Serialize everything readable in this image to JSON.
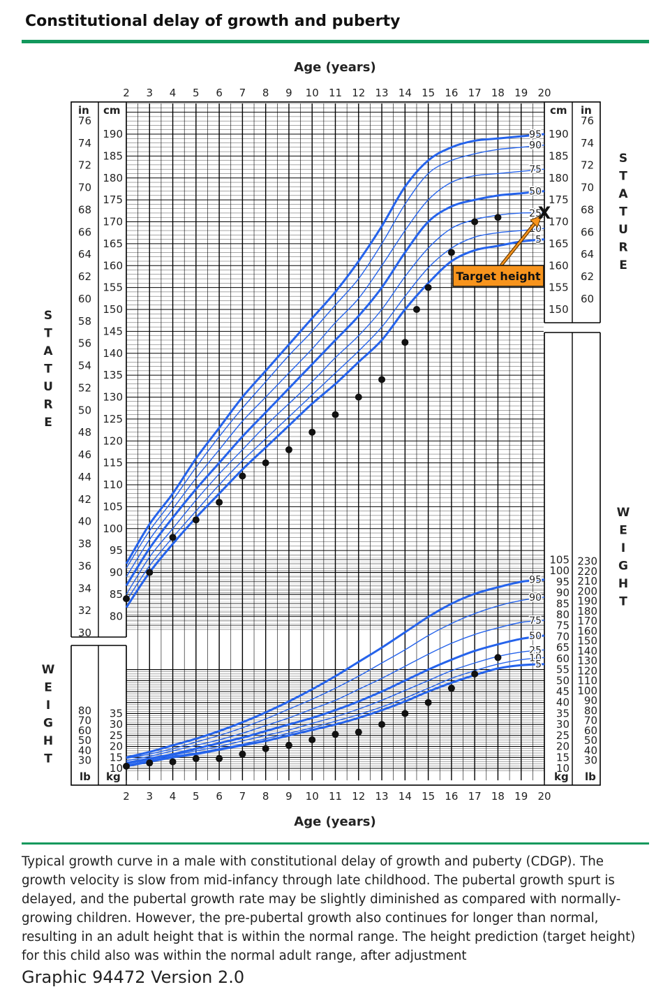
{
  "title": "Constitutional delay of growth and puberty",
  "caption": "Typical growth curve in a male with constitutional delay of growth and puberty (CDGP). The growth velocity is slow from mid-infancy through late childhood. The pubertal growth spurt is delayed, and the pubertal growth rate may be slightly diminished as compared with normally-growing children. However, the pre-pubertal growth also continues for longer than normal, resulting in an adult height that is within the normal range. The height prediction (target height) for this child also was within the normal adult range, after adjustment",
  "footer": "Graphic 94472 Version 2.0",
  "colors": {
    "accent": "#12985c",
    "curve": "#2563eb",
    "annotation": "#f7941d",
    "point": "#111111"
  },
  "chart_data": {
    "type": "line",
    "xlabel": "Age (years)",
    "x_ticks": [
      2,
      3,
      4,
      5,
      6,
      7,
      8,
      9,
      10,
      11,
      12,
      13,
      14,
      15,
      16,
      17,
      18,
      19,
      20
    ],
    "xlim": [
      2,
      20
    ],
    "percentile_labels": [
      "95",
      "90",
      "75",
      "50",
      "25",
      "10",
      "5"
    ],
    "stature": {
      "label": "STATURE",
      "ylim_cm": [
        77,
        197
      ],
      "cm_ticks_left": [
        80,
        85,
        90,
        95,
        100,
        105,
        110,
        115,
        120,
        125,
        130,
        135,
        140,
        145,
        150,
        155,
        160,
        165,
        170,
        175,
        180,
        185,
        190
      ],
      "cm_ticks_right": [
        150,
        155,
        160,
        165,
        170,
        175,
        180,
        185,
        190
      ],
      "in_ticks_left": [
        30,
        32,
        34,
        36,
        38,
        40,
        42,
        44,
        46,
        48,
        50,
        52,
        54,
        56,
        58,
        60,
        62,
        64,
        66,
        68,
        70,
        72,
        74,
        76
      ],
      "in_ticks_right": [
        60,
        62,
        64,
        66,
        68,
        70,
        72,
        74,
        76
      ],
      "unit_cm": "cm",
      "unit_in": "in",
      "ages": [
        2,
        3,
        4,
        5,
        6,
        7,
        8,
        9,
        10,
        11,
        12,
        13,
        14,
        15,
        16,
        17,
        18,
        19,
        20
      ],
      "series": [
        {
          "name": "95",
          "values": [
            92,
            101,
            108,
            116,
            123,
            130,
            136,
            142,
            148,
            154,
            161,
            169,
            178,
            184,
            187,
            188.5,
            189,
            189.5,
            190
          ]
        },
        {
          "name": "90",
          "values": [
            91,
            99.5,
            106.5,
            114,
            121,
            127.5,
            133.5,
            139.5,
            145,
            151,
            157,
            165,
            174,
            181,
            184,
            185.5,
            186.5,
            187,
            187.5
          ]
        },
        {
          "name": "75",
          "values": [
            89,
            97.5,
            104.5,
            111.5,
            118,
            124.5,
            130,
            135.5,
            141,
            147,
            152.5,
            160,
            168,
            175,
            179,
            180.5,
            181,
            181.5,
            182
          ]
        },
        {
          "name": "50",
          "values": [
            87,
            95.5,
            102.5,
            109,
            115,
            121,
            126.5,
            132,
            137.5,
            143,
            148.5,
            155,
            163,
            170,
            173.5,
            175,
            176,
            176.5,
            177
          ]
        },
        {
          "name": "25",
          "values": [
            85,
            93.5,
            100,
            106.5,
            112.5,
            118,
            123.5,
            128.5,
            133.5,
            139,
            144,
            150,
            157.5,
            164,
            168.5,
            170.5,
            171.5,
            172,
            172
          ]
        },
        {
          "name": "10",
          "values": [
            83.5,
            91.5,
            98,
            104,
            110,
            115.5,
            120.5,
            125.5,
            130.5,
            135.5,
            140.5,
            146,
            153,
            159.5,
            164,
            166.5,
            167.5,
            168,
            168.5
          ]
        },
        {
          "name": "5",
          "values": [
            82,
            90,
            96.5,
            102.5,
            108,
            113.5,
            118.5,
            123.5,
            128.5,
            133,
            138,
            143,
            150,
            156,
            161,
            163.5,
            164.5,
            165.5,
            166
          ]
        }
      ],
      "patient": {
        "x": [
          2,
          3,
          4,
          5,
          6,
          7,
          8,
          9,
          10,
          11,
          12,
          13,
          14,
          14.5,
          15,
          16,
          17,
          18
        ],
        "y": [
          84,
          90,
          98,
          102,
          106,
          112,
          115,
          118,
          122,
          126,
          130,
          134,
          142.5,
          150,
          155,
          163,
          170,
          171
        ]
      },
      "target_height": {
        "label": "Target height",
        "age": 20,
        "cm": 172
      }
    },
    "weight": {
      "label": "WEIGHT",
      "ylim_kg": [
        9,
        107
      ],
      "kg_ticks_left": [
        10,
        15,
        20,
        25,
        30,
        35
      ],
      "kg_ticks_right": [
        10,
        15,
        20,
        25,
        30,
        35,
        40,
        45,
        50,
        55,
        60,
        65,
        70,
        75,
        80,
        85,
        90,
        95,
        100,
        105
      ],
      "lb_ticks_left": [
        30,
        40,
        50,
        60,
        70,
        80
      ],
      "lb_ticks_right": [
        30,
        40,
        50,
        60,
        70,
        80,
        90,
        100,
        110,
        120,
        130,
        140,
        150,
        160,
        170,
        180,
        190,
        200,
        210,
        220,
        230
      ],
      "unit_kg": "kg",
      "unit_lb": "lb",
      "ages": [
        2,
        3,
        4,
        5,
        6,
        7,
        8,
        9,
        10,
        11,
        12,
        13,
        14,
        15,
        16,
        17,
        18,
        19,
        20
      ],
      "series": [
        {
          "name": "95",
          "values": [
            15,
            17.5,
            20.5,
            23.5,
            27,
            31,
            35.5,
            40.5,
            46,
            52,
            58.5,
            65,
            72,
            79,
            85,
            89.5,
            92.5,
            95,
            96
          ]
        },
        {
          "name": "90",
          "values": [
            14.5,
            16.5,
            19,
            22,
            25,
            28.5,
            32.5,
            37,
            41.5,
            46.5,
            52,
            58,
            64,
            70.5,
            76,
            80.5,
            84,
            86.5,
            88
          ]
        },
        {
          "name": "75",
          "values": [
            13.5,
            15.5,
            18,
            20.5,
            23,
            26,
            29.5,
            33,
            37,
            41,
            46,
            51,
            56.5,
            62,
            67,
            71,
            74,
            76.5,
            77.5
          ]
        },
        {
          "name": "50",
          "values": [
            12.5,
            14.5,
            16.5,
            19,
            21.5,
            24,
            27,
            30,
            33,
            36.5,
            40.5,
            45,
            50,
            55,
            59.5,
            63.5,
            66.5,
            69,
            70.5
          ]
        },
        {
          "name": "25",
          "values": [
            12,
            14,
            16,
            18,
            20,
            22.5,
            25,
            27.5,
            30.5,
            33.5,
            37,
            41,
            45.5,
            50,
            54.5,
            58,
            61,
            63,
            64
          ]
        },
        {
          "name": "10",
          "values": [
            11.5,
            13.5,
            15.5,
            17,
            19,
            21,
            23.5,
            26,
            28.5,
            31.5,
            34.5,
            38,
            42,
            46.5,
            51,
            54.5,
            57.5,
            59.5,
            60.5
          ]
        },
        {
          "name": "5",
          "values": [
            11,
            13,
            15,
            16.5,
            18.5,
            20.5,
            22.5,
            25,
            27.5,
            30,
            33,
            36.5,
            40.5,
            45,
            49,
            52.5,
            55.5,
            57,
            57.5
          ]
        }
      ],
      "patient": {
        "x": [
          2,
          3,
          4,
          5,
          6,
          7,
          8,
          9,
          10,
          11,
          12,
          13,
          14,
          15,
          16,
          17,
          18
        ],
        "y": [
          11,
          12.5,
          13,
          14.5,
          14.5,
          16.5,
          19,
          20.5,
          23,
          25.5,
          26.5,
          30,
          35,
          40,
          46.5,
          53,
          60.5
        ]
      }
    }
  }
}
